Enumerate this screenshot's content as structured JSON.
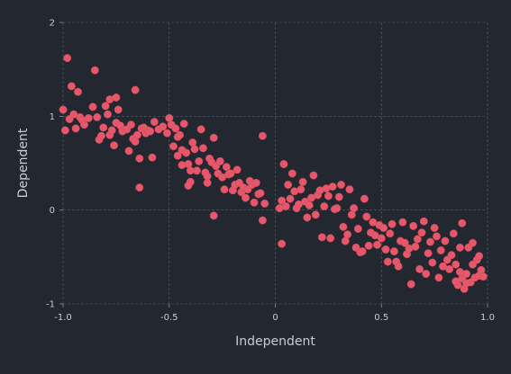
{
  "chart_data": {
    "type": "scatter",
    "title": "",
    "xlabel": "Independent",
    "ylabel": "Dependent",
    "xlim": [
      -1.0,
      1.0
    ],
    "ylim": [
      -1.0,
      2.0
    ],
    "xticks": [
      "-1.0",
      "-0.5",
      "0",
      "0.5",
      "1.0"
    ],
    "yticks": [
      "-1",
      "0",
      "1",
      "2"
    ],
    "grid": true,
    "point_color": "#e5576a",
    "background_color": "#23272f",
    "series": [
      {
        "points": [
          [
            -0.98,
            1.62
          ],
          [
            -0.96,
            1.32
          ],
          [
            -0.93,
            1.26
          ],
          [
            -0.85,
            1.49
          ],
          [
            -0.78,
            1.18
          ],
          [
            -0.75,
            1.2
          ],
          [
            -0.66,
            1.28
          ],
          [
            -1.0,
            1.07
          ],
          [
            -0.99,
            0.85
          ],
          [
            -0.97,
            0.97
          ],
          [
            -0.95,
            1.02
          ],
          [
            -0.94,
            0.87
          ],
          [
            -0.92,
            0.99
          ],
          [
            -0.91,
            0.96
          ],
          [
            -0.9,
            0.91
          ],
          [
            -0.88,
            0.98
          ],
          [
            -0.86,
            1.1
          ],
          [
            -0.84,
            0.99
          ],
          [
            -0.83,
            0.75
          ],
          [
            -0.82,
            0.79
          ],
          [
            -0.81,
            0.88
          ],
          [
            -0.8,
            1.11
          ],
          [
            -0.79,
            1.02
          ],
          [
            -0.78,
            0.8
          ],
          [
            -0.77,
            0.85
          ],
          [
            -0.76,
            0.69
          ],
          [
            -0.75,
            0.93
          ],
          [
            -0.74,
            1.07
          ],
          [
            -0.73,
            0.9
          ],
          [
            -0.72,
            0.84
          ],
          [
            -0.7,
            0.86
          ],
          [
            -0.69,
            0.63
          ],
          [
            -0.68,
            0.91
          ],
          [
            -0.67,
            0.76
          ],
          [
            -0.66,
            0.73
          ],
          [
            -0.65,
            0.8
          ],
          [
            -0.64,
            0.55
          ],
          [
            -0.64,
            0.24
          ],
          [
            -0.63,
            0.87
          ],
          [
            -0.62,
            0.88
          ],
          [
            -0.61,
            0.82
          ],
          [
            -0.6,
            0.85
          ],
          [
            -0.59,
            0.84
          ],
          [
            -0.58,
            0.56
          ],
          [
            -0.57,
            0.94
          ],
          [
            -0.55,
            0.86
          ],
          [
            -0.53,
            0.89
          ],
          [
            -0.51,
            0.82
          ],
          [
            -0.5,
            0.98
          ],
          [
            -0.49,
            0.91
          ],
          [
            -0.48,
            0.68
          ],
          [
            -0.47,
            0.87
          ],
          [
            -0.46,
            0.78
          ],
          [
            -0.45,
            0.8
          ],
          [
            -0.44,
            0.64
          ],
          [
            -0.43,
            0.92
          ],
          [
            -0.42,
            0.61
          ],
          [
            -0.41,
            0.49
          ],
          [
            -0.4,
            0.3
          ],
          [
            -0.39,
            0.72
          ],
          [
            -0.38,
            0.65
          ],
          [
            -0.37,
            0.42
          ],
          [
            -0.36,
            0.52
          ],
          [
            -0.35,
            0.86
          ],
          [
            -0.34,
            0.66
          ],
          [
            -0.33,
            0.4
          ],
          [
            -0.32,
            0.29
          ],
          [
            -0.31,
            0.55
          ],
          [
            -0.3,
            0.51
          ],
          [
            -0.29,
            0.77
          ],
          [
            -0.28,
            0.47
          ],
          [
            -0.27,
            0.39
          ],
          [
            -0.26,
            0.52
          ],
          [
            -0.25,
            0.35
          ],
          [
            -0.24,
            0.22
          ],
          [
            -0.23,
            0.46
          ],
          [
            -0.22,
            0.38
          ],
          [
            -0.21,
            0.39
          ],
          [
            -0.2,
            0.21
          ],
          [
            -0.19,
            0.27
          ],
          [
            -0.18,
            0.43
          ],
          [
            -0.17,
            0.29
          ],
          [
            -0.16,
            0.19
          ],
          [
            -0.15,
            0.24
          ],
          [
            -0.14,
            0.13
          ],
          [
            -0.13,
            0.22
          ],
          [
            -0.12,
            0.31
          ],
          [
            -0.11,
            0.27
          ],
          [
            -0.1,
            0.08
          ],
          [
            -0.09,
            0.29
          ],
          [
            -0.08,
            0.17
          ],
          [
            -0.07,
            0.18
          ],
          [
            -0.06,
            -0.11
          ],
          [
            -0.06,
            0.79
          ],
          [
            -0.05,
            0.07
          ],
          [
            -0.4,
            0.42
          ],
          [
            -0.44,
            0.48
          ],
          [
            -0.46,
            0.58
          ],
          [
            -0.41,
            0.26
          ],
          [
            -0.29,
            -0.06
          ],
          [
            -0.32,
            0.36
          ],
          [
            0.02,
            0.02
          ],
          [
            0.03,
            0.1
          ],
          [
            0.03,
            -0.36
          ],
          [
            0.04,
            0.49
          ],
          [
            0.05,
            0.04
          ],
          [
            0.06,
            0.27
          ],
          [
            0.07,
            0.12
          ],
          [
            0.08,
            0.39
          ],
          [
            0.09,
            0.2
          ],
          [
            0.1,
            0.02
          ],
          [
            0.11,
            0.06
          ],
          [
            0.12,
            0.22
          ],
          [
            0.13,
            0.3
          ],
          [
            0.14,
            0.09
          ],
          [
            0.15,
            -0.08
          ],
          [
            0.16,
            0.05
          ],
          [
            0.17,
            0.13
          ],
          [
            0.18,
            0.37
          ],
          [
            0.19,
            -0.05
          ],
          [
            0.2,
            0.16
          ],
          [
            0.21,
            0.21
          ],
          [
            0.22,
            -0.29
          ],
          [
            0.23,
            0.04
          ],
          [
            0.24,
            0.23
          ],
          [
            0.25,
            0.15
          ],
          [
            0.26,
            -0.3
          ],
          [
            0.27,
            0.25
          ],
          [
            0.28,
            0.01
          ],
          [
            0.29,
            0.02
          ],
          [
            0.3,
            0.14
          ],
          [
            0.31,
            0.27
          ],
          [
            0.32,
            -0.18
          ],
          [
            0.33,
            -0.33
          ],
          [
            0.34,
            -0.26
          ],
          [
            0.35,
            0.22
          ],
          [
            0.36,
            -0.05
          ],
          [
            0.37,
            0.02
          ],
          [
            0.38,
            -0.4
          ],
          [
            0.39,
            -0.2
          ],
          [
            0.4,
            -0.45
          ],
          [
            0.41,
            -0.44
          ],
          [
            0.42,
            0.12
          ],
          [
            0.43,
            -0.07
          ],
          [
            0.44,
            -0.38
          ],
          [
            0.45,
            -0.24
          ],
          [
            0.46,
            -0.13
          ],
          [
            0.47,
            -0.27
          ],
          [
            0.48,
            -0.37
          ],
          [
            0.49,
            -0.16
          ],
          [
            0.5,
            -0.3
          ],
          [
            0.51,
            -0.19
          ],
          [
            0.52,
            -0.42
          ],
          [
            0.53,
            -0.55
          ],
          [
            0.54,
            -0.25
          ],
          [
            0.55,
            -0.15
          ],
          [
            0.56,
            -0.44
          ],
          [
            0.57,
            -0.55
          ],
          [
            0.58,
            -0.6
          ],
          [
            0.59,
            -0.33
          ],
          [
            0.6,
            -0.13
          ],
          [
            0.61,
            -0.35
          ],
          [
            0.62,
            -0.47
          ],
          [
            0.63,
            -0.41
          ],
          [
            0.64,
            -0.79
          ],
          [
            0.65,
            -0.17
          ],
          [
            0.66,
            -0.39
          ],
          [
            0.67,
            -0.31
          ],
          [
            0.68,
            -0.63
          ],
          [
            0.69,
            -0.24
          ],
          [
            0.7,
            -0.12
          ],
          [
            0.71,
            -0.68
          ],
          [
            0.72,
            -0.46
          ],
          [
            0.73,
            -0.34
          ],
          [
            0.74,
            -0.56
          ],
          [
            0.75,
            -0.19
          ],
          [
            0.76,
            -0.28
          ],
          [
            0.77,
            -0.72
          ],
          [
            0.78,
            -0.43
          ],
          [
            0.79,
            -0.6
          ],
          [
            0.8,
            -0.33
          ],
          [
            0.81,
            -0.53
          ],
          [
            0.82,
            -0.63
          ],
          [
            0.83,
            -0.48
          ],
          [
            0.84,
            -0.25
          ],
          [
            0.85,
            -0.58
          ],
          [
            0.86,
            -0.8
          ],
          [
            0.87,
            -0.4
          ],
          [
            0.88,
            -0.73
          ],
          [
            0.88,
            -0.14
          ],
          [
            0.89,
            -0.84
          ],
          [
            0.9,
            -0.68
          ],
          [
            0.91,
            -0.4
          ],
          [
            0.92,
            -0.77
          ],
          [
            0.93,
            -0.35
          ],
          [
            0.94,
            -0.72
          ],
          [
            0.95,
            -0.53
          ],
          [
            0.96,
            -0.7
          ],
          [
            0.97,
            -0.64
          ],
          [
            0.98,
            -0.71
          ],
          [
            0.9,
            -0.78
          ],
          [
            0.87,
            -0.66
          ],
          [
            0.93,
            -0.58
          ],
          [
            0.96,
            -0.49
          ],
          [
            0.85,
            -0.76
          ]
        ]
      }
    ]
  }
}
